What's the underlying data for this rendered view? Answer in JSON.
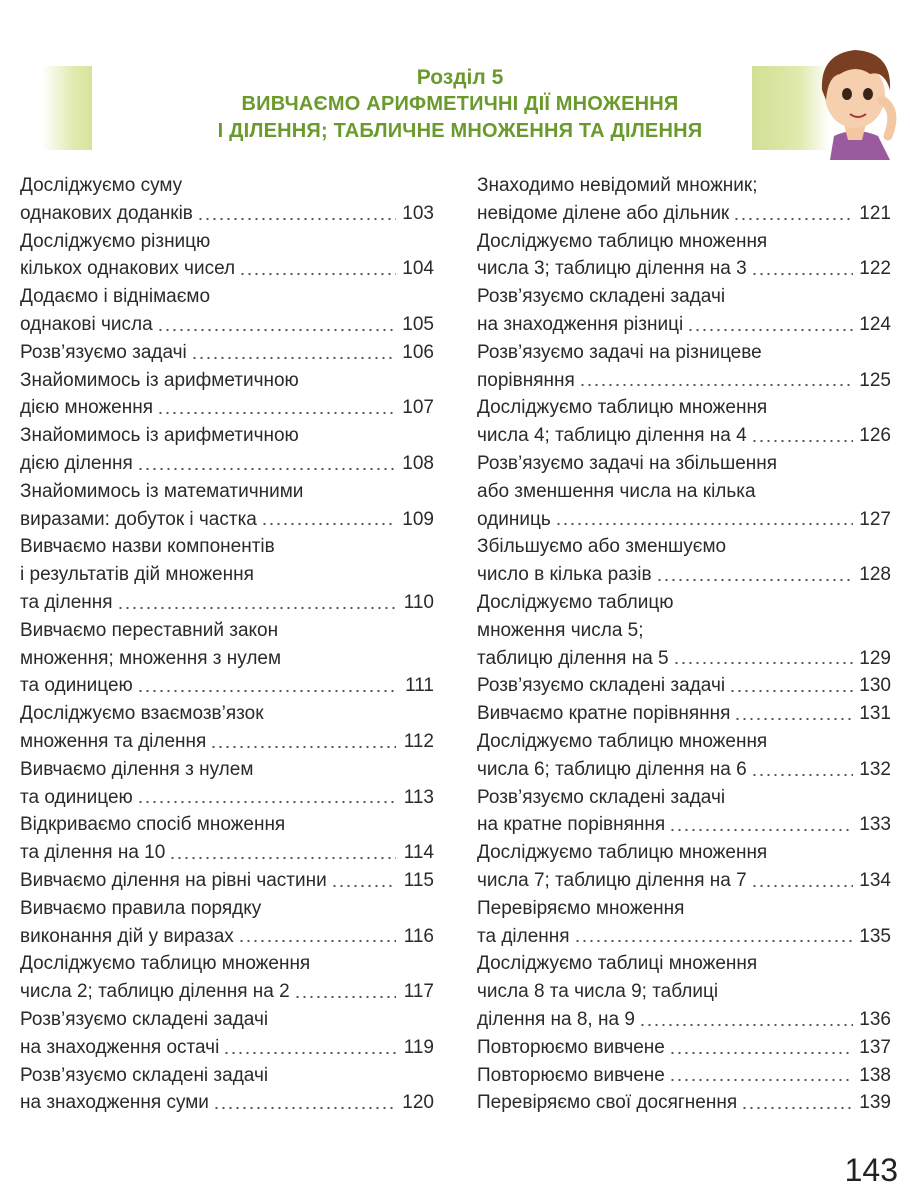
{
  "header": {
    "section": "Розділ 5",
    "title_line1": "ВИВЧАЄМО АРИФМЕТИЧНІ ДІЇ МНОЖЕННЯ",
    "title_line2": "І ДІЛЕННЯ; ТАБЛИЧНЕ МНОЖЕННЯ ТА ДІЛЕННЯ",
    "accent_color": "#6b9a2c"
  },
  "toc_left": [
    {
      "lines": [
        "Досліджуємо суму",
        "однакових доданків"
      ],
      "page": "103"
    },
    {
      "lines": [
        "Досліджуємо різницю",
        "кількох однакових чисел"
      ],
      "page": "104"
    },
    {
      "lines": [
        "Додаємо і віднімаємо",
        "однакові числа"
      ],
      "page": "105"
    },
    {
      "lines": [
        "Розв’язуємо задачі"
      ],
      "page": "106"
    },
    {
      "lines": [
        "Знайомимось із арифметичною",
        "дією множення"
      ],
      "page": "107"
    },
    {
      "lines": [
        "Знайомимось із арифметичною",
        "дією ділення"
      ],
      "page": "108"
    },
    {
      "lines": [
        "Знайомимось із математичними",
        "виразами: добуток і частка"
      ],
      "page": "109"
    },
    {
      "lines": [
        "Вивчаємо назви компонентів",
        "і результатів дій множення",
        "та ділення"
      ],
      "page": "110"
    },
    {
      "lines": [
        "Вивчаємо переставний закон",
        "множення;  множення з нулем",
        "та одиницею"
      ],
      "page": "111"
    },
    {
      "lines": [
        "Досліджуємо взаємозв’язок",
        "множення та ділення"
      ],
      "page": "112"
    },
    {
      "lines": [
        "Вивчаємо ділення з нулем",
        "та одиницею"
      ],
      "page": "113"
    },
    {
      "lines": [
        "Відкриваємо спосіб множення",
        "та ділення на 10"
      ],
      "page": "114"
    },
    {
      "lines": [
        "Вивчаємо ділення на рівні частини"
      ],
      "page": "115"
    },
    {
      "lines": [
        "Вивчаємо правила порядку",
        "виконання дій у виразах"
      ],
      "page": "116"
    },
    {
      "lines": [
        "Досліджуємо таблицю множення",
        "числа 2; таблицю ділення на 2"
      ],
      "page": "117"
    },
    {
      "lines": [
        "Розв’язуємо складені задачі",
        "на знаходження остачі"
      ],
      "page": "119"
    },
    {
      "lines": [
        "Розв’язуємо складені задачі",
        "на знаходження суми"
      ],
      "page": "120"
    }
  ],
  "toc_right": [
    {
      "lines": [
        "Знаходимо невідомий множник;",
        "невідоме ділене або дільник"
      ],
      "page": "121"
    },
    {
      "lines": [
        "Досліджуємо таблицю множення",
        "числа 3; таблицю ділення на 3"
      ],
      "page": "122"
    },
    {
      "lines": [
        "Розв’язуємо складені задачі",
        "на знаходження різниці"
      ],
      "page": "124"
    },
    {
      "lines": [
        "Розв’язуємо задачі на різницеве",
        "порівняння"
      ],
      "page": "125"
    },
    {
      "lines": [
        "Досліджуємо таблицю множення",
        "числа 4; таблицю ділення на 4"
      ],
      "page": "126"
    },
    {
      "lines": [
        "Розв’язуємо задачі на збільшення",
        "або зменшення числа на кілька",
        "одиниць"
      ],
      "page": "127"
    },
    {
      "lines": [
        "Збільшуємо або зменшуємо",
        "число в кілька разів"
      ],
      "page": "128"
    },
    {
      "lines": [
        "Досліджуємо таблицю",
        "множення числа 5;",
        "таблицю ділення на 5"
      ],
      "page": "129"
    },
    {
      "lines": [
        "Розв’язуємо складені задачі"
      ],
      "page": "130"
    },
    {
      "lines": [
        "Вивчаємо кратне порівняння"
      ],
      "page": "131"
    },
    {
      "lines": [
        "Досліджуємо таблицю множення",
        "числа 6; таблицю ділення на 6"
      ],
      "page": "132"
    },
    {
      "lines": [
        "Розв’язуємо складені задачі",
        "на кратне порівняння"
      ],
      "page": "133"
    },
    {
      "lines": [
        "Досліджуємо таблицю множення",
        "числа 7; таблицю ділення на 7"
      ],
      "page": "134"
    },
    {
      "lines": [
        "Перевіряємо множення",
        "та ділення"
      ],
      "page": "135"
    },
    {
      "lines": [
        "Досліджуємо таблиці множення",
        "числа 8 та числа 9; таблиці",
        "ділення на 8, на 9"
      ],
      "page": "136"
    },
    {
      "lines": [
        "Повторюємо вивчене"
      ],
      "page": "137"
    },
    {
      "lines": [
        "Повторюємо вивчене"
      ],
      "page": "138"
    },
    {
      "lines": [
        "Перевіряємо свої досягнення"
      ],
      "page": "139"
    }
  ],
  "page_number": "143"
}
